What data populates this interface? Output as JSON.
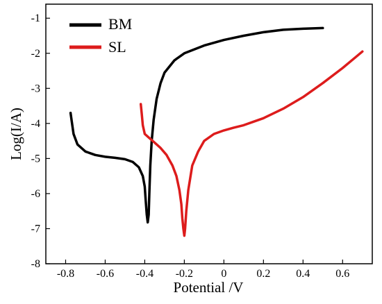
{
  "chart_data": {
    "type": "line",
    "title": "",
    "xlabel": "Potential /V",
    "ylabel": "Log(I/A)",
    "xlim": [
      -0.9,
      0.75
    ],
    "ylim": [
      -8,
      -0.6
    ],
    "xticks": [
      -0.8,
      -0.6,
      -0.4,
      -0.2,
      0,
      0.2,
      0.4,
      0.6
    ],
    "xtick_labels": [
      "-0.8",
      "-0.6",
      "-0.4",
      "-0.2",
      "0",
      "0.2",
      "0.4",
      "0.6"
    ],
    "yticks": [
      -8,
      -7,
      -6,
      -5,
      -4,
      -3,
      -2,
      -1
    ],
    "ytick_labels": [
      "-8",
      "-7",
      "-6",
      "-5",
      "-4",
      "-3",
      "-2",
      "-1"
    ],
    "grid": false,
    "legend_position": "top-left",
    "series": [
      {
        "name": "BM",
        "color": "#000000",
        "x": [
          -0.775,
          -0.77,
          -0.76,
          -0.74,
          -0.7,
          -0.65,
          -0.6,
          -0.55,
          -0.5,
          -0.46,
          -0.43,
          -0.41,
          -0.4,
          -0.395,
          -0.39,
          -0.385,
          -0.38,
          -0.377,
          -0.372,
          -0.365,
          -0.355,
          -0.34,
          -0.32,
          -0.3,
          -0.25,
          -0.2,
          -0.1,
          0.0,
          0.1,
          0.2,
          0.3,
          0.4,
          0.5
        ],
        "y": [
          -3.7,
          -3.9,
          -4.3,
          -4.6,
          -4.8,
          -4.9,
          -4.95,
          -4.98,
          -5.02,
          -5.1,
          -5.25,
          -5.5,
          -5.8,
          -6.2,
          -6.6,
          -6.82,
          -6.6,
          -6.0,
          -5.2,
          -4.5,
          -3.9,
          -3.3,
          -2.85,
          -2.55,
          -2.2,
          -2.0,
          -1.78,
          -1.62,
          -1.5,
          -1.4,
          -1.33,
          -1.3,
          -1.28
        ]
      },
      {
        "name": "SL",
        "color": "#dd1c1c",
        "x": [
          -0.42,
          -0.415,
          -0.41,
          -0.4,
          -0.38,
          -0.35,
          -0.32,
          -0.29,
          -0.26,
          -0.24,
          -0.225,
          -0.215,
          -0.21,
          -0.205,
          -0.2,
          -0.196,
          -0.19,
          -0.18,
          -0.16,
          -0.13,
          -0.1,
          -0.05,
          0.0,
          0.05,
          0.1,
          0.15,
          0.2,
          0.3,
          0.4,
          0.5,
          0.6,
          0.7
        ],
        "y": [
          -3.45,
          -3.75,
          -4.05,
          -4.3,
          -4.4,
          -4.55,
          -4.7,
          -4.9,
          -5.2,
          -5.5,
          -5.9,
          -6.3,
          -6.7,
          -7.0,
          -7.2,
          -7.0,
          -6.5,
          -5.9,
          -5.2,
          -4.8,
          -4.5,
          -4.3,
          -4.2,
          -4.12,
          -4.05,
          -3.95,
          -3.85,
          -3.58,
          -3.25,
          -2.85,
          -2.42,
          -1.95
        ]
      }
    ]
  }
}
